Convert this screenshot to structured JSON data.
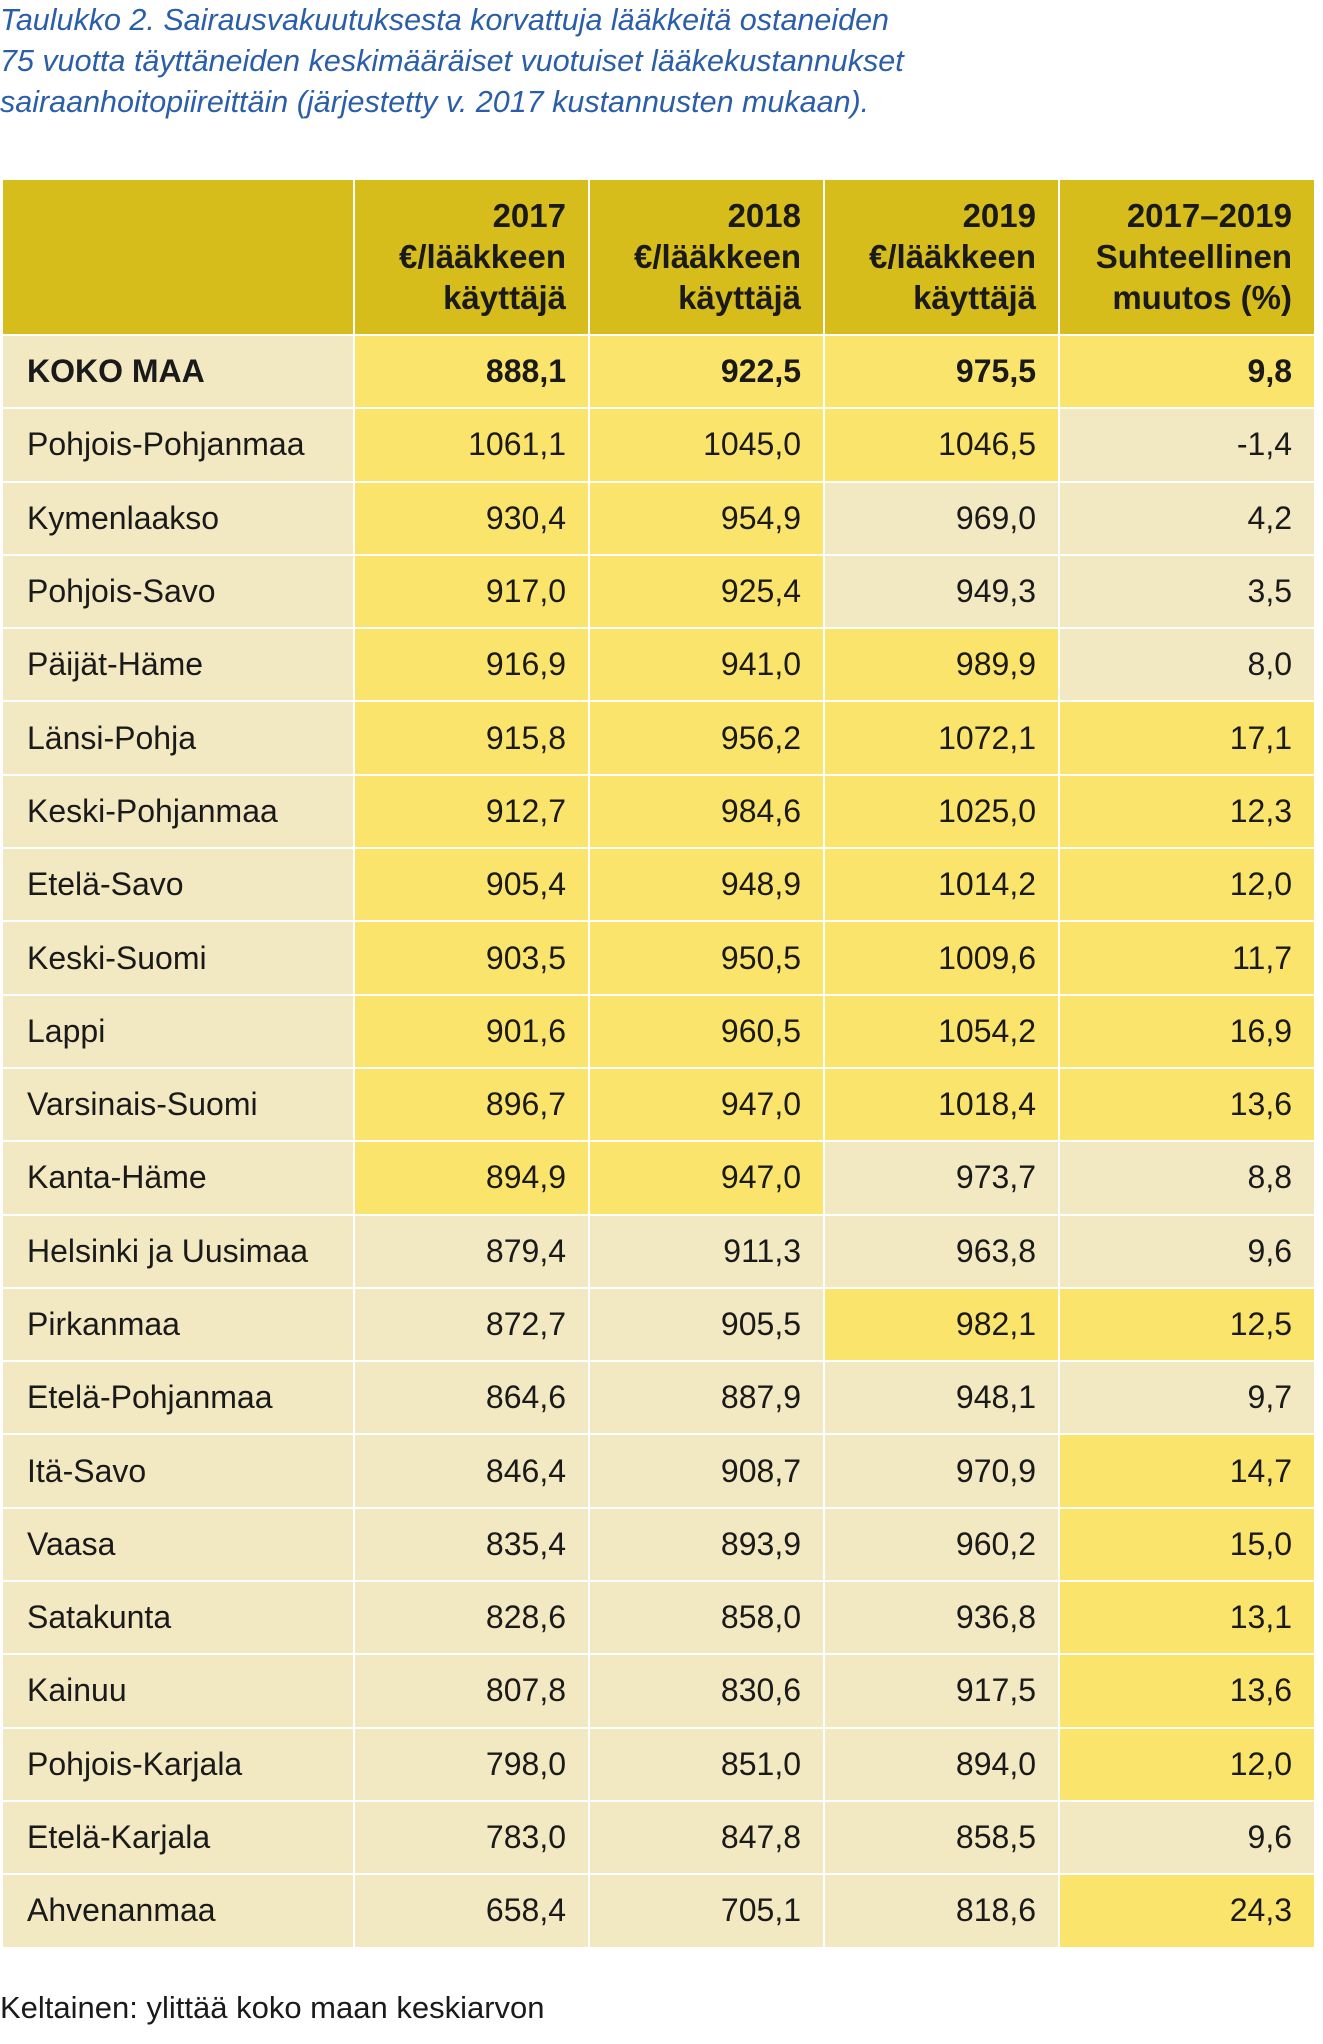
{
  "caption": {
    "lines": [
      "Taulukko 2. Sairausvakuutuksesta korvattuja lääkkeitä ostaneiden",
      "75 vuotta täyttäneiden keskimääräiset vuotuiset lääkekustannukset",
      "sairaanhoitopiireittäin (järjestetty v. 2017 kustannusten mukaan)."
    ]
  },
  "colors": {
    "header": "#d6bd1c",
    "highlight": "#fae46c",
    "normal": "#f2e8c1",
    "caption": "#2b5ea8"
  },
  "table": {
    "headers": [
      [],
      [
        "2017",
        "€/lääkkeen",
        "käyttäjä"
      ],
      [
        "2018",
        "€/lääkkeen",
        "käyttäjä"
      ],
      [
        "2019",
        "€/lääkkeen",
        "käyttäjä"
      ],
      [
        "2017–2019",
        "Suhteellinen",
        "muutos (%)"
      ]
    ],
    "total": {
      "name": "KOKO MAA",
      "values": [
        "888,1",
        "922,5",
        "975,5",
        "9,8"
      ],
      "highlight": [
        true,
        true,
        true,
        true
      ]
    },
    "rows": [
      {
        "name": "Pohjois-Pohjanmaa",
        "values": [
          "1061,1",
          "1045,0",
          "1046,5",
          "-1,4"
        ],
        "highlight": [
          true,
          true,
          true,
          false
        ]
      },
      {
        "name": "Kymenlaakso",
        "values": [
          "930,4",
          "954,9",
          "969,0",
          "4,2"
        ],
        "highlight": [
          true,
          true,
          false,
          false
        ]
      },
      {
        "name": "Pohjois-Savo",
        "values": [
          "917,0",
          "925,4",
          "949,3",
          "3,5"
        ],
        "highlight": [
          true,
          true,
          false,
          false
        ]
      },
      {
        "name": "Päijät-Häme",
        "values": [
          "916,9",
          "941,0",
          "989,9",
          "8,0"
        ],
        "highlight": [
          true,
          true,
          true,
          false
        ]
      },
      {
        "name": "Länsi-Pohja",
        "values": [
          "915,8",
          "956,2",
          "1072,1",
          "17,1"
        ],
        "highlight": [
          true,
          true,
          true,
          true
        ]
      },
      {
        "name": "Keski-Pohjanmaa",
        "values": [
          "912,7",
          "984,6",
          "1025,0",
          "12,3"
        ],
        "highlight": [
          true,
          true,
          true,
          true
        ]
      },
      {
        "name": "Etelä-Savo",
        "values": [
          "905,4",
          "948,9",
          "1014,2",
          "12,0"
        ],
        "highlight": [
          true,
          true,
          true,
          true
        ]
      },
      {
        "name": "Keski-Suomi",
        "values": [
          "903,5",
          "950,5",
          "1009,6",
          "11,7"
        ],
        "highlight": [
          true,
          true,
          true,
          true
        ]
      },
      {
        "name": "Lappi",
        "values": [
          "901,6",
          "960,5",
          "1054,2",
          "16,9"
        ],
        "highlight": [
          true,
          true,
          true,
          true
        ]
      },
      {
        "name": "Varsinais-Suomi",
        "values": [
          "896,7",
          "947,0",
          "1018,4",
          "13,6"
        ],
        "highlight": [
          true,
          true,
          true,
          true
        ]
      },
      {
        "name": "Kanta-Häme",
        "values": [
          "894,9",
          "947,0",
          "973,7",
          "8,8"
        ],
        "highlight": [
          true,
          true,
          false,
          false
        ]
      },
      {
        "name": "Helsinki ja Uusimaa",
        "values": [
          "879,4",
          "911,3",
          "963,8",
          "9,6"
        ],
        "highlight": [
          false,
          false,
          false,
          false
        ]
      },
      {
        "name": "Pirkanmaa",
        "values": [
          "872,7",
          "905,5",
          "982,1",
          "12,5"
        ],
        "highlight": [
          false,
          false,
          true,
          true
        ]
      },
      {
        "name": "Etelä-Pohjanmaa",
        "values": [
          "864,6",
          "887,9",
          "948,1",
          "9,7"
        ],
        "highlight": [
          false,
          false,
          false,
          false
        ]
      },
      {
        "name": "Itä-Savo",
        "values": [
          "846,4",
          "908,7",
          "970,9",
          "14,7"
        ],
        "highlight": [
          false,
          false,
          false,
          true
        ]
      },
      {
        "name": "Vaasa",
        "values": [
          "835,4",
          "893,9",
          "960,2",
          "15,0"
        ],
        "highlight": [
          false,
          false,
          false,
          true
        ]
      },
      {
        "name": "Satakunta",
        "values": [
          "828,6",
          "858,0",
          "936,8",
          "13,1"
        ],
        "highlight": [
          false,
          false,
          false,
          true
        ]
      },
      {
        "name": "Kainuu",
        "values": [
          "807,8",
          "830,6",
          "917,5",
          "13,6"
        ],
        "highlight": [
          false,
          false,
          false,
          true
        ]
      },
      {
        "name": "Pohjois-Karjala",
        "values": [
          "798,0",
          "851,0",
          "894,0",
          "12,0"
        ],
        "highlight": [
          false,
          false,
          false,
          true
        ]
      },
      {
        "name": "Etelä-Karjala",
        "values": [
          "783,0",
          "847,8",
          "858,5",
          "9,6"
        ],
        "highlight": [
          false,
          false,
          false,
          false
        ]
      },
      {
        "name": "Ahvenanmaa",
        "values": [
          "658,4",
          "705,1",
          "818,6",
          "24,3"
        ],
        "highlight": [
          false,
          false,
          false,
          true
        ]
      }
    ]
  },
  "footnote": "Keltainen: ylittää koko maan keskiarvon"
}
